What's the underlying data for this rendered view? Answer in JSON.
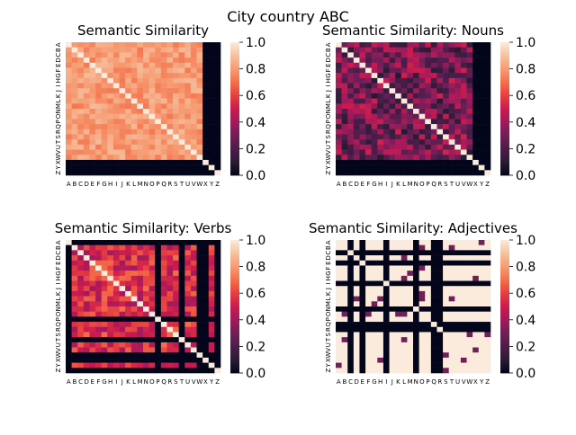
{
  "figure": {
    "suptitle": "City country ABC"
  },
  "colorbar_ticks": [
    "0.0",
    "0.2",
    "0.4",
    "0.6",
    "0.8",
    "1.0"
  ],
  "colormap": {
    "name": "rocket",
    "stops": [
      "#03051a",
      "#2b1c35",
      "#4c1d4b",
      "#701f57",
      "#a11a5b",
      "#cb1b4f",
      "#e83f3f",
      "#f3704b",
      "#f69c73",
      "#f6c19f",
      "#faebdd"
    ]
  },
  "chart_data": [
    {
      "type": "heatmap",
      "title": "Semantic Similarity",
      "labels": [
        "A",
        "B",
        "C",
        "D",
        "E",
        "F",
        "G",
        "H",
        "I",
        "J",
        "K",
        "L",
        "M",
        "N",
        "O",
        "P",
        "Q",
        "R",
        "S",
        "T",
        "U",
        "V",
        "W",
        "X",
        "Y",
        "Z"
      ],
      "zlim": [
        0,
        1
      ],
      "pattern": "uniform_high",
      "base": 0.8,
      "spread": 0.08,
      "zero_labels": [
        "X",
        "Y",
        "Z"
      ],
      "diag_one": true
    },
    {
      "type": "heatmap",
      "title": "Semantic Similarity: Nouns",
      "labels": [
        "A",
        "B",
        "C",
        "D",
        "E",
        "F",
        "G",
        "H",
        "I",
        "J",
        "K",
        "L",
        "M",
        "N",
        "O",
        "P",
        "Q",
        "R",
        "S",
        "T",
        "U",
        "V",
        "W",
        "X",
        "Y",
        "Z"
      ],
      "zlim": [
        0,
        1
      ],
      "pattern": "uniform_low",
      "base": 0.3,
      "spread": 0.22,
      "zero_labels": [
        "X",
        "Y",
        "Z"
      ],
      "diag_one": true
    },
    {
      "type": "heatmap",
      "title": "Semantic Similarity: Verbs",
      "labels": [
        "A",
        "B",
        "C",
        "D",
        "E",
        "F",
        "G",
        "H",
        "I",
        "J",
        "K",
        "L",
        "M",
        "N",
        "O",
        "P",
        "Q",
        "R",
        "S",
        "T",
        "U",
        "V",
        "W",
        "X",
        "Y",
        "Z"
      ],
      "zlim": [
        0,
        1
      ],
      "pattern": "uniform_mid",
      "base": 0.55,
      "spread": 0.15,
      "zero_labels": [
        "A",
        "P",
        "T",
        "W",
        "X",
        "Z"
      ],
      "diag_one": true
    },
    {
      "type": "heatmap",
      "title": "Semantic Similarity: Adjectives",
      "labels": [
        "A",
        "B",
        "C",
        "D",
        "E",
        "F",
        "G",
        "H",
        "I",
        "J",
        "K",
        "L",
        "M",
        "N",
        "O",
        "P",
        "Q",
        "R",
        "S",
        "T",
        "U",
        "V",
        "W",
        "X",
        "Y",
        "Z"
      ],
      "zlim": [
        0,
        1
      ],
      "pattern": "binary",
      "base": 1.0,
      "spread": 0.0,
      "zero_labels": [
        "C",
        "E",
        "I",
        "N",
        "Q",
        "R"
      ],
      "diag_one": true
    }
  ]
}
